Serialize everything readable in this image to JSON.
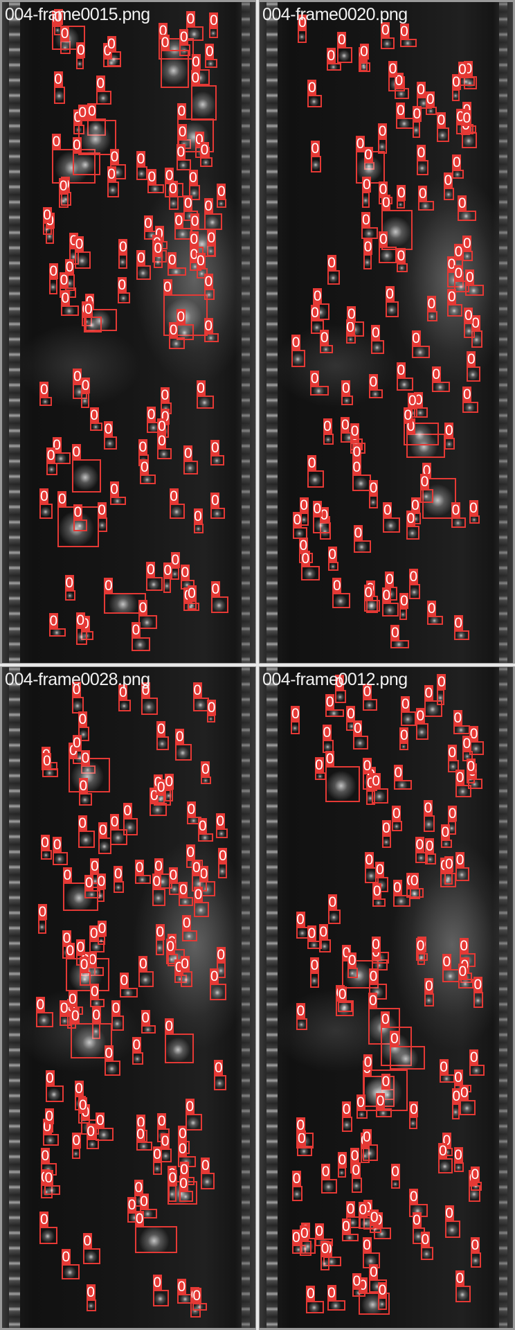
{
  "panels": [
    {
      "label": "004-frame0015.png",
      "detection_label": "0",
      "detection_count": 108
    },
    {
      "label": "004-frame0020.png",
      "detection_label": "0",
      "detection_count": 104
    },
    {
      "label": "004-frame0028.png",
      "detection_label": "0",
      "detection_count": 112
    },
    {
      "label": "004-frame0012.png",
      "detection_label": "0",
      "detection_count": 118
    }
  ],
  "colors": {
    "box": "#e53935",
    "label_text": "#ffffff",
    "caption": "#f2f2f2"
  }
}
